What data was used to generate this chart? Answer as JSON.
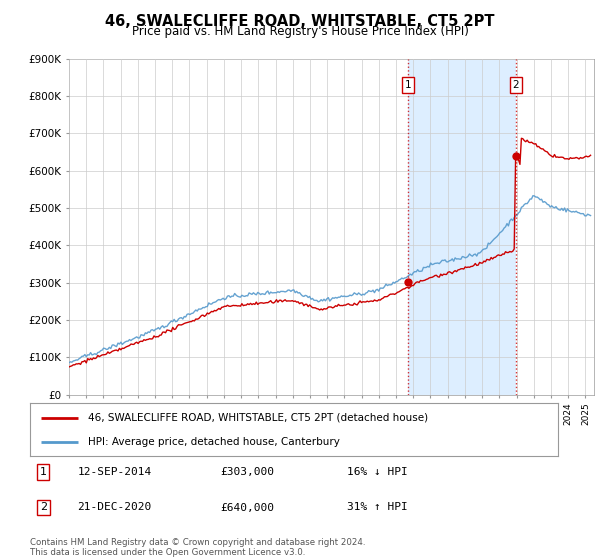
{
  "title": "46, SWALECLIFFE ROAD, WHITSTABLE, CT5 2PT",
  "subtitle": "Price paid vs. HM Land Registry's House Price Index (HPI)",
  "legend_line1": "46, SWALECLIFFE ROAD, WHITSTABLE, CT5 2PT (detached house)",
  "legend_line2": "HPI: Average price, detached house, Canterbury",
  "transaction1_date": "12-SEP-2014",
  "transaction1_price": "£303,000",
  "transaction1_hpi": "16% ↓ HPI",
  "transaction2_date": "21-DEC-2020",
  "transaction2_price": "£640,000",
  "transaction2_hpi": "31% ↑ HPI",
  "footer": "Contains HM Land Registry data © Crown copyright and database right 2024.\nThis data is licensed under the Open Government Licence v3.0.",
  "hpi_color": "#5599cc",
  "price_color": "#cc0000",
  "grid_color": "#cccccc",
  "shade_color": "#ddeeff",
  "ylim": [
    0,
    900000
  ],
  "xlim_start": 1995.0,
  "xlim_end": 2025.5,
  "transaction1_x": 2014.7,
  "transaction1_y": 303000,
  "transaction2_x": 2020.97,
  "transaction2_y": 640000
}
